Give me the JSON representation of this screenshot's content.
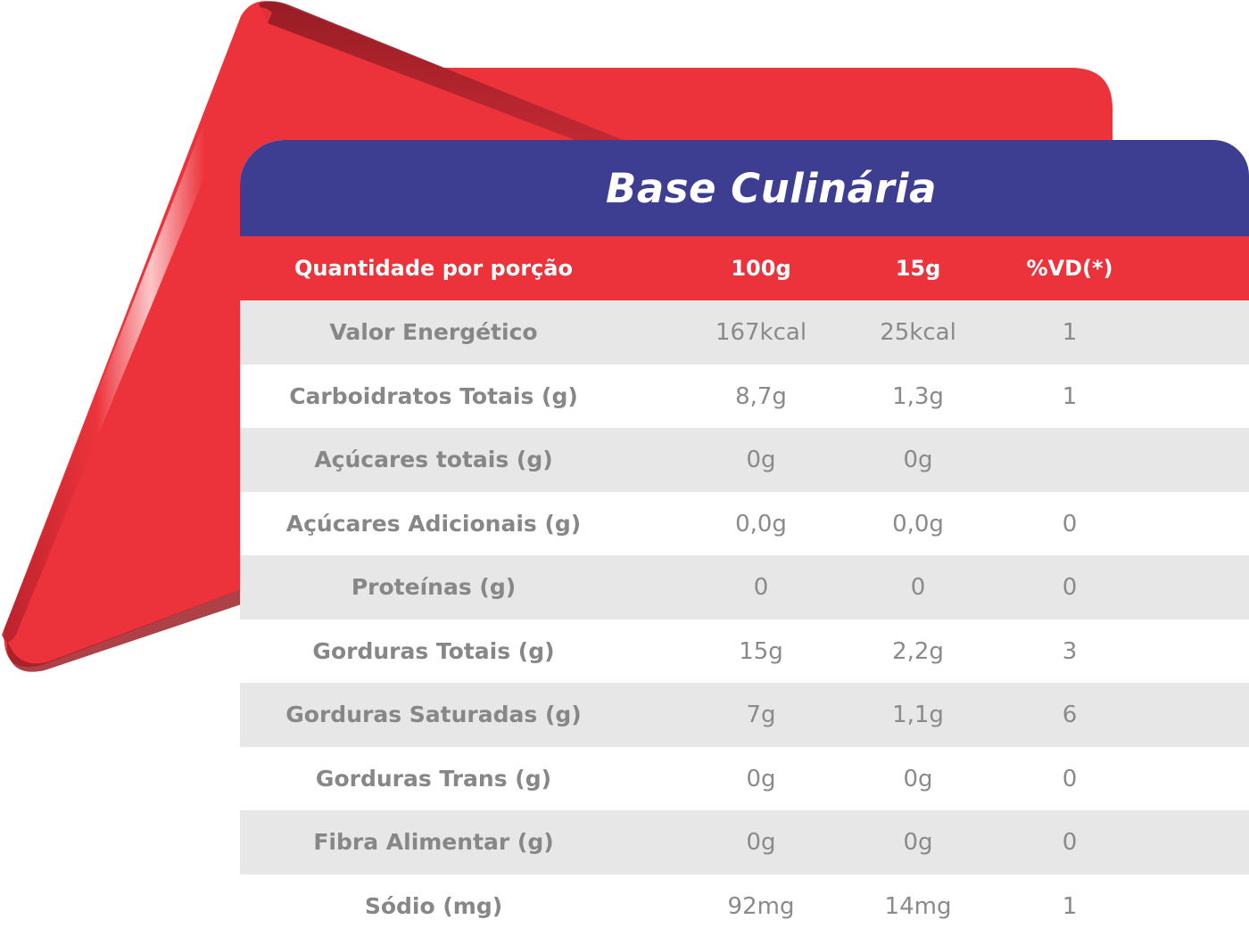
{
  "colors": {
    "title_bar": "#3d3e91",
    "header_row": "#ec333b",
    "shaded_row": "#e7e7e8",
    "text_gray": "#8a8a8a",
    "decor_red": "#ec333b"
  },
  "table": {
    "title": "Base Culinária",
    "headers": {
      "label": "Quantidade por porção",
      "col_100g": "100g",
      "col_15g": "15g",
      "col_vd": "%VD(*)"
    },
    "rows": [
      {
        "label": "Valor Energético",
        "v100": "167kcal",
        "v15": "25kcal",
        "vd": "1"
      },
      {
        "label": "Carboidratos Totais (g)",
        "v100": "8,7g",
        "v15": "1,3g",
        "vd": "1"
      },
      {
        "label": "Açúcares totais (g)",
        "v100": "0g",
        "v15": "0g",
        "vd": ""
      },
      {
        "label": "Açúcares Adicionais (g)",
        "v100": "0,0g",
        "v15": "0,0g",
        "vd": "0"
      },
      {
        "label": "Proteínas (g)",
        "v100": "0",
        "v15": "0",
        "vd": "0"
      },
      {
        "label": "Gorduras Totais (g)",
        "v100": "15g",
        "v15": "2,2g",
        "vd": "3"
      },
      {
        "label": "Gorduras Saturadas (g)",
        "v100": "7g",
        "v15": "1,1g",
        "vd": "6"
      },
      {
        "label": "Gorduras Trans (g)",
        "v100": "0g",
        "v15": "0g",
        "vd": "0"
      },
      {
        "label": "Fibra Alimentar (g)",
        "v100": "0g",
        "v15": "0g",
        "vd": "0"
      },
      {
        "label": "Sódio (mg)",
        "v100": "92mg",
        "v15": "14mg",
        "vd": "1"
      }
    ]
  }
}
